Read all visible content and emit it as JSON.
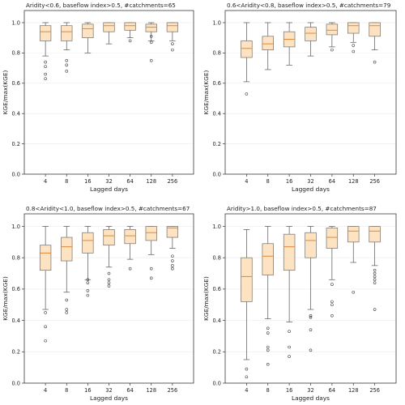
{
  "colors": {
    "box_fill": "#fde3c2",
    "box_edge": "#707070",
    "median": "#e0883a"
  },
  "chart_data": [
    {
      "type": "box",
      "title": "Aridity<0.6, baseflow index>0.5, #catchments=65",
      "xlabel": "Lagged days",
      "ylabel": "KGE/max(KGE)",
      "categories": [
        "4",
        "8",
        "16",
        "32",
        "64",
        "128",
        "256"
      ],
      "yticks": [
        "0.0",
        "0.2",
        "0.4",
        "0.6",
        "0.8",
        "1.0"
      ],
      "ylim": [
        0,
        1.08
      ],
      "grid": true,
      "boxes": [
        {
          "lo": 0.78,
          "q1": 0.88,
          "med": 0.94,
          "q3": 0.98,
          "hi": 1.0,
          "fliers": [
            0.74,
            0.71,
            0.66,
            0.63
          ]
        },
        {
          "lo": 0.82,
          "q1": 0.88,
          "med": 0.94,
          "q3": 0.98,
          "hi": 1.0,
          "fliers": [
            0.75,
            0.72,
            0.68
          ]
        },
        {
          "lo": 0.8,
          "q1": 0.9,
          "med": 0.96,
          "q3": 0.99,
          "hi": 1.0,
          "fliers": []
        },
        {
          "lo": 0.86,
          "q1": 0.94,
          "med": 0.98,
          "q3": 1.0,
          "hi": 1.0,
          "fliers": []
        },
        {
          "lo": 0.9,
          "q1": 0.95,
          "med": 0.98,
          "q3": 1.0,
          "hi": 1.0,
          "fliers": [
            0.88
          ]
        },
        {
          "lo": 0.88,
          "q1": 0.94,
          "med": 0.97,
          "q3": 0.99,
          "hi": 1.0,
          "fliers": [
            0.91,
            0.87,
            0.75
          ]
        },
        {
          "lo": 0.88,
          "q1": 0.94,
          "med": 0.98,
          "q3": 1.0,
          "hi": 1.0,
          "fliers": [
            0.86,
            0.82
          ]
        }
      ]
    },
    {
      "type": "box",
      "title": "0.6<Aridity<0.8, baseflow index>0.5, #catchments=79",
      "xlabel": "Lagged days",
      "ylabel": "KGE/max(KGE)",
      "categories": [
        "4",
        "8",
        "16",
        "32",
        "64",
        "128",
        "256"
      ],
      "yticks": [
        "0.0",
        "0.2",
        "0.4",
        "0.6",
        "0.8",
        "1.0"
      ],
      "ylim": [
        0,
        1.08
      ],
      "grid": true,
      "boxes": [
        {
          "lo": 0.61,
          "q1": 0.77,
          "med": 0.83,
          "q3": 0.88,
          "hi": 1.0,
          "fliers": [
            0.53
          ]
        },
        {
          "lo": 0.69,
          "q1": 0.82,
          "med": 0.86,
          "q3": 0.91,
          "hi": 1.0,
          "fliers": []
        },
        {
          "lo": 0.72,
          "q1": 0.84,
          "med": 0.89,
          "q3": 0.94,
          "hi": 1.0,
          "fliers": []
        },
        {
          "lo": 0.78,
          "q1": 0.88,
          "med": 0.93,
          "q3": 0.97,
          "hi": 1.0,
          "fliers": []
        },
        {
          "lo": 0.84,
          "q1": 0.92,
          "med": 0.95,
          "q3": 0.99,
          "hi": 1.0,
          "fliers": [
            0.82
          ]
        },
        {
          "lo": 0.87,
          "q1": 0.93,
          "med": 0.98,
          "q3": 1.0,
          "hi": 1.0,
          "fliers": [
            0.85,
            0.81
          ]
        },
        {
          "lo": 0.82,
          "q1": 0.91,
          "med": 0.98,
          "q3": 1.0,
          "hi": 1.0,
          "fliers": [
            0.74
          ]
        }
      ]
    },
    {
      "type": "box",
      "title": "0.8<Aridity<1.0, baseflow index>0.5, #catchments=67",
      "xlabel": "Lagged days",
      "ylabel": "KGE/max(KGE)",
      "categories": [
        "4",
        "8",
        "16",
        "32",
        "64",
        "128",
        "256"
      ],
      "yticks": [
        "0.0",
        "0.2",
        "0.4",
        "0.6",
        "0.8",
        "1.0"
      ],
      "ylim": [
        0,
        1.08
      ],
      "grid": true,
      "boxes": [
        {
          "lo": 0.47,
          "q1": 0.72,
          "med": 0.83,
          "q3": 0.88,
          "hi": 1.0,
          "fliers": [
            0.45,
            0.36,
            0.27
          ]
        },
        {
          "lo": 0.58,
          "q1": 0.78,
          "med": 0.87,
          "q3": 0.93,
          "hi": 1.0,
          "fliers": [
            0.53,
            0.47,
            0.45
          ]
        },
        {
          "lo": 0.66,
          "q1": 0.83,
          "med": 0.91,
          "q3": 0.96,
          "hi": 1.0,
          "fliers": [
            0.66,
            0.64,
            0.59,
            0.56
          ]
        },
        {
          "lo": 0.74,
          "q1": 0.88,
          "med": 0.94,
          "q3": 0.98,
          "hi": 1.0,
          "fliers": [
            0.7,
            0.66,
            0.64,
            0.62
          ]
        },
        {
          "lo": 0.79,
          "q1": 0.89,
          "med": 0.94,
          "q3": 0.98,
          "hi": 1.0,
          "fliers": [
            0.73
          ]
        },
        {
          "lo": 0.82,
          "q1": 0.91,
          "med": 0.96,
          "q3": 1.0,
          "hi": 1.0,
          "fliers": [
            0.73,
            0.67
          ]
        },
        {
          "lo": 0.86,
          "q1": 0.93,
          "med": 0.99,
          "q3": 1.0,
          "hi": 1.0,
          "fliers": [
            0.81,
            0.78,
            0.75,
            0.73
          ]
        }
      ]
    },
    {
      "type": "box",
      "title": "Aridity>1.0, baseflow index>0.5, #catchments=87",
      "xlabel": "Lagged days",
      "ylabel": "KGE/max(KGE)",
      "categories": [
        "4",
        "8",
        "16",
        "32",
        "64",
        "128",
        "256"
      ],
      "yticks": [
        "0.0",
        "0.2",
        "0.4",
        "0.6",
        "0.8",
        "1.0"
      ],
      "ylim": [
        0,
        1.08
      ],
      "grid": true,
      "boxes": [
        {
          "lo": 0.15,
          "q1": 0.52,
          "med": 0.68,
          "q3": 0.8,
          "hi": 0.98,
          "fliers": [
            0.09,
            0.04
          ]
        },
        {
          "lo": 0.41,
          "q1": 0.69,
          "med": 0.81,
          "q3": 0.89,
          "hi": 1.0,
          "fliers": [
            0.35,
            0.32,
            0.23,
            0.21,
            0.12
          ]
        },
        {
          "lo": 0.39,
          "q1": 0.72,
          "med": 0.87,
          "q3": 0.95,
          "hi": 1.0,
          "fliers": [
            0.33,
            0.23,
            0.17
          ]
        },
        {
          "lo": 0.47,
          "q1": 0.8,
          "med": 0.91,
          "q3": 0.96,
          "hi": 1.0,
          "fliers": [
            0.43,
            0.42,
            0.34,
            0.21
          ]
        },
        {
          "lo": 0.66,
          "q1": 0.86,
          "med": 0.93,
          "q3": 0.99,
          "hi": 1.0,
          "fliers": [
            0.63,
            0.52,
            0.5,
            0.43
          ]
        },
        {
          "lo": 0.77,
          "q1": 0.9,
          "med": 0.97,
          "q3": 1.0,
          "hi": 1.0,
          "fliers": [
            0.58
          ]
        },
        {
          "lo": 0.75,
          "q1": 0.9,
          "med": 0.97,
          "q3": 1.0,
          "hi": 1.0,
          "fliers": [
            0.72,
            0.7,
            0.68,
            0.66,
            0.64,
            0.47
          ]
        }
      ]
    }
  ]
}
